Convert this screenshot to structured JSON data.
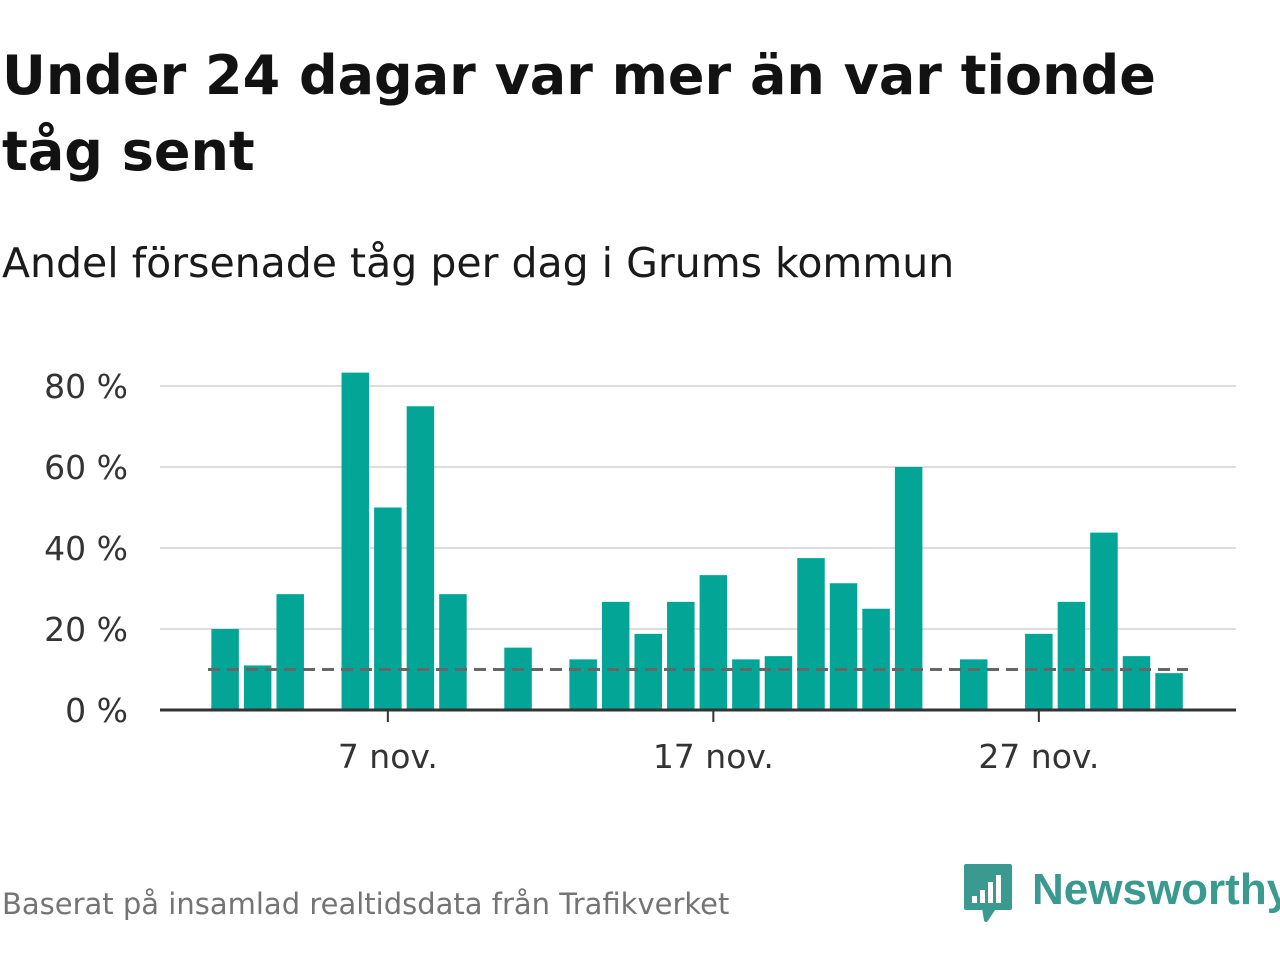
{
  "title": "Under 24 dagar var mer än var tionde tåg sent",
  "subtitle": "Andel försenade tåg per dag i Grums kommun",
  "source": "Baserat på insamlad realtidsdata från Trafikverket",
  "logo": {
    "text": "Newsworthy",
    "icon": "newsworthy-logo-icon",
    "color": "#3a9a8f"
  },
  "colors": {
    "bar": "#02a596",
    "grid": "#dddddd",
    "axis": "#333333",
    "reference": "#666666"
  },
  "chart_data": {
    "type": "bar",
    "x_start": "2022-11-01",
    "x_end": "2022-11-30",
    "x_ticks": [
      {
        "date": "2022-11-07",
        "label": "7 nov."
      },
      {
        "date": "2022-11-17",
        "label": "17 nov."
      },
      {
        "date": "2022-11-27",
        "label": "27 nov."
      }
    ],
    "y_ticks": [
      {
        "value": 0,
        "label": "0 %"
      },
      {
        "value": 20,
        "label": "20 %"
      },
      {
        "value": 40,
        "label": "40 %"
      },
      {
        "value": 60,
        "label": "60 %"
      },
      {
        "value": 80,
        "label": "80 %"
      }
    ],
    "ylim": [
      0,
      80
    ],
    "reference_line": 10,
    "grid": true,
    "series": [
      {
        "values": [
          {
            "date": "2022-11-02",
            "value": 20
          },
          {
            "date": "2022-11-03",
            "value": 11
          },
          {
            "date": "2022-11-04",
            "value": 28.6
          },
          {
            "date": "2022-11-06",
            "value": 83.3
          },
          {
            "date": "2022-11-07",
            "value": 50
          },
          {
            "date": "2022-11-08",
            "value": 75
          },
          {
            "date": "2022-11-09",
            "value": 28.6
          },
          {
            "date": "2022-11-11",
            "value": 15.4
          },
          {
            "date": "2022-11-13",
            "value": 12.5
          },
          {
            "date": "2022-11-14",
            "value": 26.7
          },
          {
            "date": "2022-11-15",
            "value": 18.8
          },
          {
            "date": "2022-11-16",
            "value": 26.7
          },
          {
            "date": "2022-11-17",
            "value": 33.3
          },
          {
            "date": "2022-11-18",
            "value": 12.5
          },
          {
            "date": "2022-11-19",
            "value": 13.3
          },
          {
            "date": "2022-11-20",
            "value": 37.5
          },
          {
            "date": "2022-11-21",
            "value": 31.3
          },
          {
            "date": "2022-11-22",
            "value": 25
          },
          {
            "date": "2022-11-23",
            "value": 60
          },
          {
            "date": "2022-11-25",
            "value": 12.5
          },
          {
            "date": "2022-11-27",
            "value": 18.8
          },
          {
            "date": "2022-11-28",
            "value": 26.7
          },
          {
            "date": "2022-11-29",
            "value": 43.8
          },
          {
            "date": "2022-11-30",
            "value": 13.3
          },
          {
            "date": "2022-12-01",
            "value": 9.1
          }
        ]
      }
    ]
  }
}
